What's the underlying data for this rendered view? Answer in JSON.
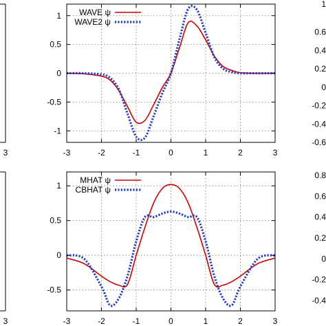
{
  "colors": {
    "red": "#cc0000",
    "blue": "#1f3ccc",
    "axis": "#000000",
    "grid": "#777777"
  },
  "chart_data": [
    {
      "type": "line",
      "panel": "top-middle",
      "xlim": [
        -3,
        3
      ],
      "ylim": [
        -1.2,
        1.2
      ],
      "xticks": [
        -3,
        -2,
        -1,
        0,
        1,
        2,
        3
      ],
      "xtick_labels": [
        "-3",
        "-2",
        "-1",
        "0",
        "1",
        "2",
        "3"
      ],
      "yticks": [
        1,
        0.5,
        0,
        -0.5,
        -1
      ],
      "ytick_labels": [
        "1",
        "0.5",
        "0",
        "-0.5",
        "-1"
      ],
      "grid": true,
      "legend": "top-left",
      "x": [
        -3,
        -2.5,
        -2,
        -1.75,
        -1.5,
        -1.25,
        -1,
        -0.75,
        -0.5,
        -0.25,
        0,
        0.25,
        0.5,
        0.75,
        1,
        1.25,
        1.5,
        1.75,
        2,
        2.5,
        3
      ],
      "series": [
        {
          "name": "WAVE ψ",
          "color": "#cc0000",
          "style": "solid",
          "values": [
            0.0,
            -0.01,
            -0.05,
            -0.12,
            -0.3,
            -0.58,
            -0.85,
            -0.82,
            -0.55,
            -0.25,
            0.0,
            0.45,
            0.88,
            0.82,
            0.58,
            0.3,
            0.12,
            0.05,
            0.01,
            0.0,
            0.0
          ]
        },
        {
          "name": "WAVE2 ψ",
          "color": "#1f3ccc",
          "style": "dotted",
          "values": [
            0.0,
            0.0,
            -0.02,
            -0.08,
            -0.28,
            -0.7,
            -1.1,
            -1.12,
            -0.75,
            -0.35,
            0.0,
            0.6,
            1.12,
            1.1,
            0.7,
            0.28,
            0.08,
            0.02,
            0.0,
            0.0,
            0.0
          ]
        }
      ]
    },
    {
      "type": "line",
      "panel": "bottom-middle",
      "xlim": [
        -3,
        3
      ],
      "ylim": [
        -0.8,
        1.2
      ],
      "xticks": [
        -3,
        -2,
        -1,
        0,
        1,
        2,
        3
      ],
      "xtick_labels": [
        "-3",
        "-2",
        "-1",
        "0",
        "1",
        "2",
        "3"
      ],
      "yticks": [
        1,
        0.5,
        0,
        -0.5
      ],
      "ytick_labels": [
        "1",
        "0.5",
        "0",
        "-0.5"
      ],
      "grid": true,
      "legend": "top-left",
      "x": [
        -3,
        -2.5,
        -2,
        -1.75,
        -1.5,
        -1.25,
        -1,
        -0.75,
        -0.5,
        -0.25,
        0,
        0.25,
        0.5,
        0.75,
        1,
        1.25,
        1.5,
        1.75,
        2,
        2.5,
        3
      ],
      "series": [
        {
          "name": "MHAT ψ",
          "color": "#cc0000",
          "style": "solid",
          "values": [
            -0.04,
            -0.12,
            -0.3,
            -0.38,
            -0.43,
            -0.42,
            0.0,
            0.4,
            0.75,
            0.96,
            1.02,
            0.96,
            0.75,
            0.4,
            0.0,
            -0.42,
            -0.43,
            -0.38,
            -0.3,
            -0.12,
            -0.04
          ]
        },
        {
          "name": "CBHAT ψ",
          "color": "#1f3ccc",
          "style": "dotted",
          "values": [
            0.0,
            -0.05,
            -0.45,
            -0.72,
            -0.62,
            -0.3,
            0.2,
            0.55,
            0.55,
            0.6,
            0.63,
            0.6,
            0.55,
            0.55,
            0.2,
            -0.3,
            -0.62,
            -0.72,
            -0.45,
            -0.05,
            0.0
          ]
        }
      ]
    }
  ],
  "partial_left": {
    "top_xtick": "3",
    "bottom_xtick": "3"
  },
  "partial_right": {
    "top_yticks": [
      "1",
      "0.6",
      "0.4",
      "0.2",
      "0",
      "-0.2",
      "-0.4",
      "-0.6"
    ],
    "bottom_yticks": [
      "0.8",
      "0.6",
      "0.4",
      "0.2",
      "0",
      "-0.2",
      "-0.4"
    ]
  }
}
